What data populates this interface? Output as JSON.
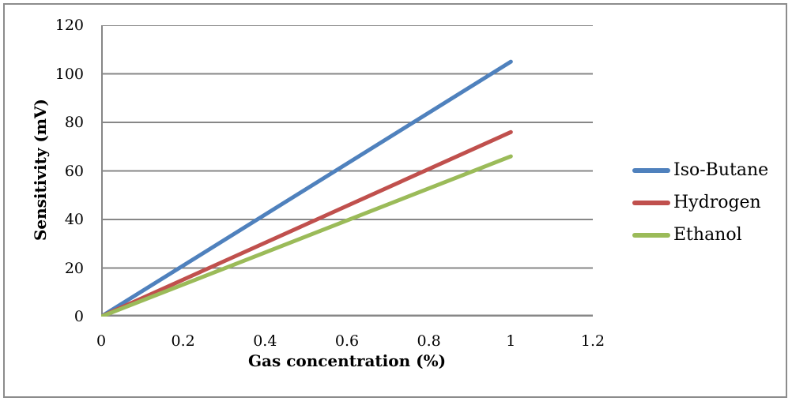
{
  "chart_data": {
    "type": "line",
    "title": "",
    "xlabel": "Gas concentration (%)",
    "ylabel": "Sensitivity (mV)",
    "xlim": [
      0,
      1.2
    ],
    "ylim": [
      0,
      120
    ],
    "xticks": [
      "0",
      "0.2",
      "0.4",
      "0.6",
      "0.8",
      "1",
      "1.2"
    ],
    "yticks": [
      "0",
      "20",
      "40",
      "60",
      "80",
      "100",
      "120"
    ],
    "grid": true,
    "legend_position": "right",
    "x": [
      0,
      1
    ],
    "series": [
      {
        "name": "Iso-Butane",
        "color": "#4f81bd",
        "values": [
          0,
          105
        ]
      },
      {
        "name": "Hydrogen",
        "color": "#c0504d",
        "values": [
          0,
          76
        ]
      },
      {
        "name": "Ethanol",
        "color": "#9bbb59",
        "values": [
          0,
          66
        ]
      }
    ],
    "colors": {
      "gridline": "#878787",
      "axis": "#878787",
      "frame_border": "#8c8c8c",
      "background": "#ffffff"
    }
  }
}
